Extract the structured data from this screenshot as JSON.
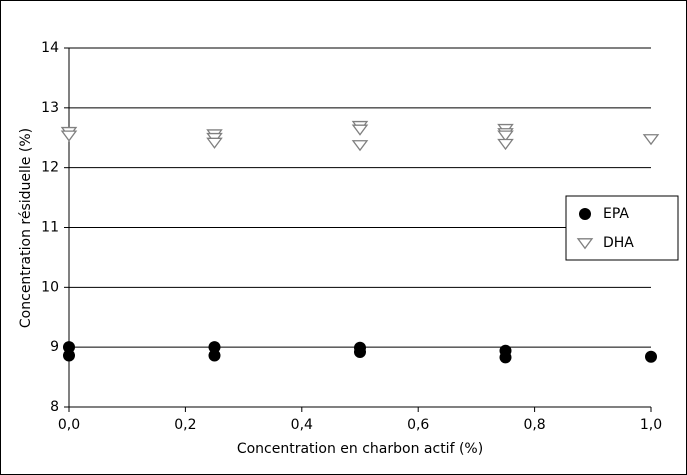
{
  "chart_data": {
    "type": "scatter",
    "x_label": "Concentration en charbon actif (%)",
    "y_label": "Concentration résiduelle (%)",
    "xlim": [
      0,
      1
    ],
    "ylim": [
      8,
      14
    ],
    "xticks": [
      {
        "value": 0,
        "label": "0,0"
      },
      {
        "value": 0.2,
        "label": "0,2"
      },
      {
        "value": 0.4,
        "label": "0,4"
      },
      {
        "value": 0.6,
        "label": "0,6"
      },
      {
        "value": 0.8,
        "label": "0,8"
      },
      {
        "value": 1,
        "label": "1,0"
      }
    ],
    "yticks": [
      8,
      9,
      10,
      11,
      12,
      13,
      14
    ],
    "grid": true,
    "legend": "right",
    "series": [
      {
        "name": "EPA",
        "color": "#000000",
        "marker": "circle",
        "x": [
          0,
          0,
          0.25,
          0.25,
          0.5,
          0.5,
          0.75,
          0.75,
          1
        ],
        "values": [
          9.0,
          8.86,
          9.0,
          8.86,
          8.99,
          8.92,
          8.94,
          8.83,
          8.84
        ]
      },
      {
        "name": "DHA",
        "color": "#808080",
        "marker": "triangle-down",
        "x": [
          0,
          0,
          0.25,
          0.25,
          0.25,
          0.5,
          0.5,
          0.5,
          0.75,
          0.75,
          0.75,
          0.75,
          1
        ],
        "values": [
          12.6,
          12.54,
          12.56,
          12.5,
          12.42,
          12.7,
          12.64,
          12.38,
          12.65,
          12.58,
          12.54,
          12.4,
          12.48
        ]
      }
    ]
  }
}
